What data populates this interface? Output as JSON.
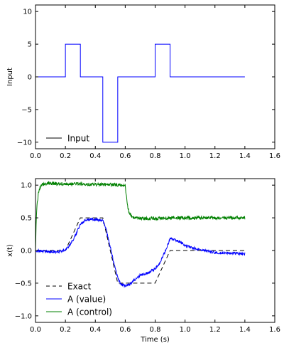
{
  "chart_data": [
    {
      "type": "line",
      "ylabel": "Input",
      "xlim": [
        0,
        1.6
      ],
      "ylim": [
        -11,
        11
      ],
      "xticks": [
        "0.0",
        "0.2",
        "0.4",
        "0.6",
        "0.8",
        "1.0",
        "1.2",
        "1.4",
        "1.6"
      ],
      "yticks": [
        "−10",
        "−5",
        "0",
        "5",
        "10"
      ],
      "grid": false,
      "legend_position": "lower-left",
      "series": [
        {
          "name": "Input",
          "color": "#0000ff",
          "dash": "solid",
          "x": [
            0,
            0.2,
            0.2,
            0.3,
            0.3,
            0.45,
            0.45,
            0.55,
            0.55,
            0.8,
            0.8,
            0.9,
            0.9,
            1.4
          ],
          "y": [
            0,
            0,
            5,
            5,
            0,
            0,
            -10,
            -10,
            0,
            0,
            5,
            5,
            0,
            0
          ]
        }
      ],
      "legend": [
        {
          "label": "Input",
          "color": "#000000",
          "dash": "solid"
        }
      ]
    },
    {
      "type": "line",
      "xlabel": "Time (s)",
      "ylabel": "x(t)",
      "xlim": [
        0,
        1.6
      ],
      "ylim": [
        -1.1,
        1.1
      ],
      "xticks": [
        "0.0",
        "0.2",
        "0.4",
        "0.6",
        "0.8",
        "1.0",
        "1.2",
        "1.4",
        "1.6"
      ],
      "yticks": [
        "−1.0",
        "−0.5",
        "0.0",
        "0.5",
        "1.0"
      ],
      "grid": false,
      "legend_position": "lower-left",
      "series": [
        {
          "name": "Exact",
          "color": "#000000",
          "dash": "dashed",
          "x": [
            0,
            0.2,
            0.3,
            0.45,
            0.55,
            0.8,
            0.9,
            1.4
          ],
          "y": [
            0,
            0,
            0.5,
            0.5,
            -0.5,
            -0.5,
            0,
            0
          ]
        },
        {
          "name": "A (value)",
          "color": "#0000ff",
          "dash": "solid",
          "noise": 0.02,
          "x": [
            0,
            0.05,
            0.1,
            0.15,
            0.2,
            0.22,
            0.25,
            0.28,
            0.3,
            0.33,
            0.38,
            0.42,
            0.45,
            0.47,
            0.5,
            0.53,
            0.55,
            0.57,
            0.6,
            0.63,
            0.66,
            0.7,
            0.75,
            0.8,
            0.83,
            0.86,
            0.9,
            0.95,
            1.0,
            1.05,
            1.1,
            1.2,
            1.3,
            1.4
          ],
          "y": [
            0,
            -0.01,
            -0.02,
            -0.02,
            0.01,
            0.06,
            0.15,
            0.3,
            0.4,
            0.46,
            0.48,
            0.47,
            0.46,
            0.35,
            0.05,
            -0.25,
            -0.42,
            -0.52,
            -0.54,
            -0.52,
            -0.45,
            -0.38,
            -0.34,
            -0.28,
            -0.2,
            -0.05,
            0.18,
            0.15,
            0.08,
            0.04,
            0.01,
            -0.03,
            -0.04,
            -0.05
          ]
        },
        {
          "name": "A (control)",
          "color": "#008000",
          "dash": "solid",
          "noise": 0.025,
          "x": [
            0,
            0.005,
            0.01,
            0.02,
            0.03,
            0.04,
            0.06,
            0.08,
            0.1,
            0.2,
            0.3,
            0.4,
            0.5,
            0.58,
            0.6,
            0.61,
            0.62,
            0.64,
            0.66,
            0.7,
            0.8,
            0.9,
            1.0,
            1.2,
            1.4
          ],
          "y": [
            0,
            0.45,
            0.7,
            0.88,
            0.96,
            1.0,
            1.02,
            1.03,
            1.03,
            1.02,
            1.02,
            1.01,
            1.01,
            1.0,
            0.98,
            0.8,
            0.62,
            0.53,
            0.5,
            0.49,
            0.49,
            0.5,
            0.5,
            0.5,
            0.5
          ]
        }
      ],
      "legend": [
        {
          "label": "Exact",
          "color": "#000000",
          "dash": "dashed"
        },
        {
          "label": "A (value)",
          "color": "#0000ff",
          "dash": "solid"
        },
        {
          "label": "A (control)",
          "color": "#008000",
          "dash": "solid"
        }
      ]
    }
  ]
}
